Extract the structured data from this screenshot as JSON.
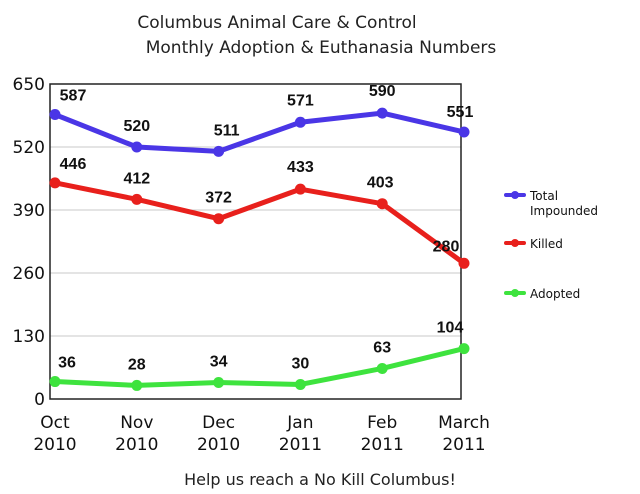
{
  "chart_data": {
    "type": "line",
    "title": "Columbus Animal Care & Control",
    "subtitle": "Monthly Adoption & Euthanasia Numbers",
    "footer": "Help us reach a No Kill Columbus!",
    "categories": [
      [
        "Oct",
        "2010"
      ],
      [
        "Nov",
        "2010"
      ],
      [
        "Dec",
        "2010"
      ],
      [
        "Jan",
        "2011"
      ],
      [
        "Feb",
        "2011"
      ],
      [
        "March",
        "2011"
      ]
    ],
    "yticks": [
      0,
      130,
      260,
      390,
      520,
      650
    ],
    "ylim": [
      0,
      650
    ],
    "grid": true,
    "legend_position": "right",
    "series": [
      {
        "name": "Total Impounded",
        "legend_lines": [
          "Total",
          "Impounded"
        ],
        "color": "#4a36e6",
        "values": [
          587,
          520,
          511,
          571,
          590,
          551
        ]
      },
      {
        "name": "Killed",
        "legend_lines": [
          "Killed"
        ],
        "color": "#e8201c",
        "values": [
          446,
          412,
          372,
          433,
          403,
          280
        ]
      },
      {
        "name": "Adopted",
        "legend_lines": [
          "Adopted"
        ],
        "color": "#3ee33e",
        "values": [
          36,
          28,
          34,
          30,
          63,
          104
        ]
      }
    ]
  }
}
